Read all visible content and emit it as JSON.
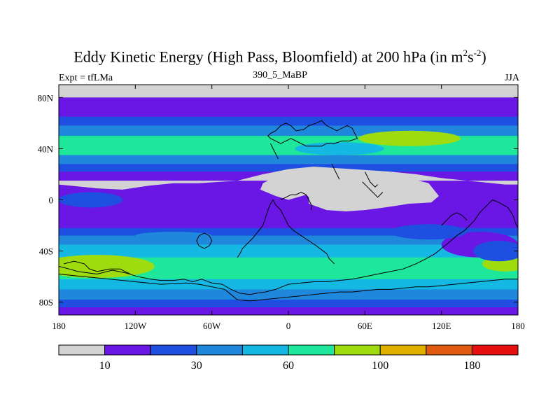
{
  "chart_data": {
    "type": "heatmap",
    "title_main": "Eddy Kinetic Energy (High Pass, Bloomfield) at 200 hPa (in m",
    "title_unit_exp1": "2",
    "title_unit_s": "s",
    "title_unit_exp2": "-2",
    "title_close": ")",
    "subtitle_left": "Expt = tfLMa",
    "subtitle_center": "390_5_MaBP",
    "subtitle_right": "JJA",
    "x_ticks": [
      {
        "lon": -180,
        "label": "180"
      },
      {
        "lon": -120,
        "label": "120W"
      },
      {
        "lon": -60,
        "label": "60W"
      },
      {
        "lon": 0,
        "label": "0"
      },
      {
        "lon": 60,
        "label": "60E"
      },
      {
        "lon": 120,
        "label": "120E"
      },
      {
        "lon": 180,
        "label": "180"
      }
    ],
    "y_ticks": [
      {
        "lat": 80,
        "label": "80N"
      },
      {
        "lat": 40,
        "label": "40N"
      },
      {
        "lat": 0,
        "label": "0"
      },
      {
        "lat": -40,
        "label": "40S"
      },
      {
        "lat": -80,
        "label": "80S"
      }
    ],
    "xlim": [
      -180,
      180
    ],
    "ylim": [
      -90,
      90
    ],
    "colorbar": {
      "colors": [
        "#d3d3d3",
        "#6a16e4",
        "#1f4fe0",
        "#1f88dd",
        "#14b8e2",
        "#1ee69a",
        "#9edc10",
        "#e0b000",
        "#e05a10",
        "#e61010"
      ],
      "labels": [
        {
          "boundary": 1,
          "text": "10"
        },
        {
          "boundary": 3,
          "text": "30"
        },
        {
          "boundary": 5,
          "text": "60"
        },
        {
          "boundary": 7,
          "text": "100"
        },
        {
          "boundary": 9,
          "text": "180"
        }
      ]
    },
    "bands": [
      {
        "lat0": 90,
        "lat1": 80,
        "level": 0
      },
      {
        "lat0": 80,
        "lat1": 65,
        "level": 1
      },
      {
        "lat0": 65,
        "lat1": 58,
        "level": 2
      },
      {
        "lat0": 58,
        "lat1": 50,
        "level": 3
      },
      {
        "lat0": 50,
        "lat1": 35,
        "level": 5
      },
      {
        "lat0": 35,
        "lat1": 28,
        "level": 3
      },
      {
        "lat0": 28,
        "lat1": 22,
        "level": 2
      },
      {
        "lat0": 22,
        "lat1": 13,
        "level": 1
      },
      {
        "lat0": 13,
        "lat1": -22,
        "level": 1
      },
      {
        "lat0": -22,
        "lat1": -28,
        "level": 2
      },
      {
        "lat0": -28,
        "lat1": -35,
        "level": 3
      },
      {
        "lat0": -35,
        "lat1": -45,
        "level": 4
      },
      {
        "lat0": -45,
        "lat1": -62,
        "level": 5
      },
      {
        "lat0": -62,
        "lat1": -70,
        "level": 4
      },
      {
        "lat0": -70,
        "lat1": -78,
        "level": 3
      },
      {
        "lat0": -78,
        "lat1": -84,
        "level": 2
      },
      {
        "lat0": -84,
        "lat1": -90,
        "level": 1
      }
    ],
    "blobs": [
      {
        "lon": -155,
        "lat": 0,
        "rlon": 25,
        "rlat": 6,
        "level": 2
      },
      {
        "lon": 95,
        "lat": 48,
        "rlon": 40,
        "rlat": 6,
        "level": 6
      },
      {
        "lon": -150,
        "lat": -52,
        "rlon": 45,
        "rlat": 9,
        "level": 6
      },
      {
        "lon": 170,
        "lat": -50,
        "rlon": 18,
        "rlat": 6,
        "level": 6
      },
      {
        "lon": 40,
        "lat": -50,
        "rlon": 12,
        "rlat": 4,
        "level": 5
      },
      {
        "lon": 150,
        "lat": -35,
        "rlon": 30,
        "rlat": 10,
        "level": 1
      },
      {
        "lon": 165,
        "lat": -40,
        "rlon": 20,
        "rlat": 8,
        "level": 2
      },
      {
        "lon": 110,
        "lat": -25,
        "rlon": 30,
        "rlat": 6,
        "level": 2
      },
      {
        "lon": -90,
        "lat": -28,
        "rlon": 30,
        "rlat": 3,
        "level": 3
      },
      {
        "lon": 40,
        "lat": 40,
        "rlon": 35,
        "rlat": 5,
        "level": 4
      },
      {
        "lon": -110,
        "lat": 42,
        "rlon": 40,
        "rlat": 5,
        "level": 5
      }
    ],
    "gray_zones": [
      [
        [
          -180,
          12
        ],
        [
          -170,
          11
        ],
        [
          -150,
          9
        ],
        [
          -130,
          8
        ],
        [
          -110,
          11
        ],
        [
          -90,
          13
        ],
        [
          -70,
          13
        ],
        [
          -40,
          15
        ],
        [
          -20,
          20
        ],
        [
          0,
          24
        ],
        [
          20,
          26
        ],
        [
          50,
          24
        ],
        [
          80,
          22
        ],
        [
          100,
          20
        ],
        [
          120,
          17
        ],
        [
          150,
          14
        ],
        [
          170,
          12
        ],
        [
          180,
          12
        ],
        [
          180,
          15
        ],
        [
          -180,
          15
        ]
      ],
      [
        [
          -20,
          13
        ],
        [
          -10,
          18
        ],
        [
          10,
          24
        ],
        [
          40,
          24
        ],
        [
          70,
          21
        ],
        [
          90,
          18
        ],
        [
          110,
          13
        ],
        [
          118,
          3
        ],
        [
          112,
          -2
        ],
        [
          95,
          -3
        ],
        [
          75,
          -6
        ],
        [
          60,
          -8
        ],
        [
          45,
          -9
        ],
        [
          30,
          -8
        ],
        [
          16,
          -3
        ],
        [
          16,
          2
        ],
        [
          14,
          4
        ],
        [
          0,
          0
        ],
        [
          -10,
          3
        ],
        [
          -22,
          8
        ]
      ]
    ],
    "coastlines": [
      [
        [
          -180,
          -52
        ],
        [
          -172,
          -54
        ],
        [
          -165,
          -56
        ],
        [
          -150,
          -58
        ],
        [
          -138,
          -55
        ],
        [
          -128,
          -57
        ],
        [
          -118,
          -60
        ],
        [
          -108,
          -62
        ],
        [
          -100,
          -63
        ],
        [
          -90,
          -63
        ],
        [
          -82,
          -62
        ],
        [
          -75,
          -64
        ],
        [
          -68,
          -62
        ],
        [
          -60,
          -65
        ],
        [
          -52,
          -66
        ],
        [
          -45,
          -70
        ],
        [
          -38,
          -73
        ],
        [
          -30,
          -74
        ],
        [
          -25,
          -73
        ],
        [
          -18,
          -72
        ],
        [
          -10,
          -70
        ],
        [
          -5,
          -68
        ],
        [
          0,
          -66
        ],
        [
          10,
          -65
        ],
        [
          20,
          -64
        ],
        [
          30,
          -64
        ],
        [
          40,
          -63
        ],
        [
          50,
          -62
        ],
        [
          60,
          -60
        ],
        [
          70,
          -58
        ],
        [
          80,
          -56
        ],
        [
          90,
          -54
        ],
        [
          100,
          -50
        ],
        [
          108,
          -46
        ],
        [
          115,
          -42
        ],
        [
          120,
          -38
        ],
        [
          125,
          -34
        ],
        [
          132,
          -28
        ],
        [
          138,
          -24
        ],
        [
          142,
          -20
        ],
        [
          146,
          -16
        ],
        [
          150,
          -10
        ],
        [
          156,
          -4
        ],
        [
          160,
          0
        ],
        [
          165,
          -2
        ],
        [
          172,
          -6
        ],
        [
          176,
          -12
        ],
        [
          178,
          -18
        ],
        [
          180,
          -22
        ]
      ],
      [
        [
          -180,
          -58
        ],
        [
          -160,
          -60
        ],
        [
          -140,
          -62
        ],
        [
          -120,
          -64
        ],
        [
          -100,
          -66
        ],
        [
          -80,
          -65
        ],
        [
          -70,
          -66
        ],
        [
          -60,
          -68
        ],
        [
          -50,
          -70
        ],
        [
          -45,
          -74
        ],
        [
          -40,
          -78
        ],
        [
          -30,
          -79
        ],
        [
          -20,
          -78
        ],
        [
          -10,
          -77
        ],
        [
          0,
          -76
        ],
        [
          10,
          -75
        ],
        [
          20,
          -74
        ],
        [
          30,
          -73
        ],
        [
          40,
          -72
        ],
        [
          50,
          -72
        ],
        [
          60,
          -71
        ],
        [
          70,
          -70
        ],
        [
          80,
          -70
        ],
        [
          90,
          -69
        ],
        [
          100,
          -68
        ],
        [
          110,
          -68
        ],
        [
          120,
          -67
        ],
        [
          130,
          -66
        ],
        [
          140,
          -65
        ],
        [
          150,
          -64
        ],
        [
          160,
          -63
        ],
        [
          170,
          -62
        ],
        [
          180,
          -62
        ]
      ],
      [
        [
          -40,
          -45
        ],
        [
          -38,
          -42
        ],
        [
          -36,
          -38
        ],
        [
          -32,
          -34
        ],
        [
          -28,
          -30
        ],
        [
          -24,
          -25
        ],
        [
          -20,
          -20
        ],
        [
          -18,
          -14
        ],
        [
          -16,
          -8
        ],
        [
          -14,
          -3
        ],
        [
          -12,
          0
        ],
        [
          -10,
          -4
        ],
        [
          -6,
          -8
        ],
        [
          -4,
          -12
        ],
        [
          -2,
          -16
        ],
        [
          0,
          -20
        ],
        [
          4,
          -24
        ],
        [
          10,
          -28
        ],
        [
          16,
          -32
        ],
        [
          22,
          -36
        ],
        [
          26,
          -39
        ],
        [
          30,
          -42
        ],
        [
          32,
          -46
        ],
        [
          34,
          -48
        ],
        [
          36,
          -50
        ]
      ],
      [
        [
          -14,
          52
        ],
        [
          -10,
          54
        ],
        [
          -8,
          56
        ],
        [
          -6,
          58
        ],
        [
          -2,
          60
        ],
        [
          2,
          58
        ],
        [
          6,
          54
        ],
        [
          12,
          55
        ],
        [
          16,
          58
        ],
        [
          22,
          60
        ],
        [
          26,
          62
        ],
        [
          30,
          58
        ],
        [
          34,
          56
        ],
        [
          38,
          54
        ],
        [
          42,
          56
        ],
        [
          46,
          58
        ],
        [
          50,
          56
        ],
        [
          52,
          52
        ],
        [
          54,
          48
        ],
        [
          48,
          46
        ],
        [
          42,
          46
        ],
        [
          36,
          44
        ],
        [
          30,
          44
        ],
        [
          26,
          42
        ],
        [
          20,
          42
        ],
        [
          14,
          42
        ],
        [
          10,
          44
        ],
        [
          6,
          46
        ],
        [
          2,
          48
        ],
        [
          -2,
          46
        ],
        [
          -6,
          44
        ],
        [
          -10,
          46
        ],
        [
          -14,
          48
        ],
        [
          -16,
          50
        ],
        [
          -14,
          52
        ]
      ],
      [
        [
          -14,
          44
        ],
        [
          -12,
          40
        ],
        [
          -10,
          36
        ],
        [
          -8,
          32
        ]
      ],
      [
        [
          -6,
          0
        ],
        [
          -2,
          2
        ],
        [
          2,
          4
        ],
        [
          6,
          4
        ],
        [
          10,
          6
        ],
        [
          14,
          4
        ],
        [
          16,
          0
        ],
        [
          18,
          -4
        ],
        [
          18,
          -8
        ]
      ],
      [
        [
          34,
          28
        ],
        [
          36,
          24
        ],
        [
          38,
          20
        ],
        [
          40,
          16
        ]
      ],
      [
        [
          58,
          14
        ],
        [
          62,
          10
        ],
        [
          66,
          6
        ],
        [
          70,
          2
        ],
        [
          74,
          6
        ]
      ],
      [
        [
          60,
          22
        ],
        [
          62,
          18
        ],
        [
          64,
          14
        ],
        [
          68,
          10
        ],
        [
          70,
          12
        ]
      ],
      [
        [
          120,
          -20
        ],
        [
          124,
          -16
        ],
        [
          128,
          -12
        ],
        [
          132,
          -10
        ],
        [
          136,
          -12
        ],
        [
          140,
          -16
        ]
      ],
      [
        [
          -70,
          -28
        ],
        [
          -66,
          -26
        ],
        [
          -62,
          -28
        ],
        [
          -60,
          -32
        ],
        [
          -62,
          -36
        ],
        [
          -66,
          -38
        ],
        [
          -70,
          -36
        ],
        [
          -72,
          -32
        ],
        [
          -70,
          -28
        ]
      ],
      [
        [
          -176,
          -50
        ],
        [
          -168,
          -48
        ],
        [
          -160,
          -50
        ],
        [
          -156,
          -54
        ],
        [
          -150,
          -56
        ],
        [
          -140,
          -54
        ],
        [
          -132,
          -54
        ],
        [
          -128,
          -56
        ],
        [
          -124,
          -58
        ]
      ]
    ]
  }
}
